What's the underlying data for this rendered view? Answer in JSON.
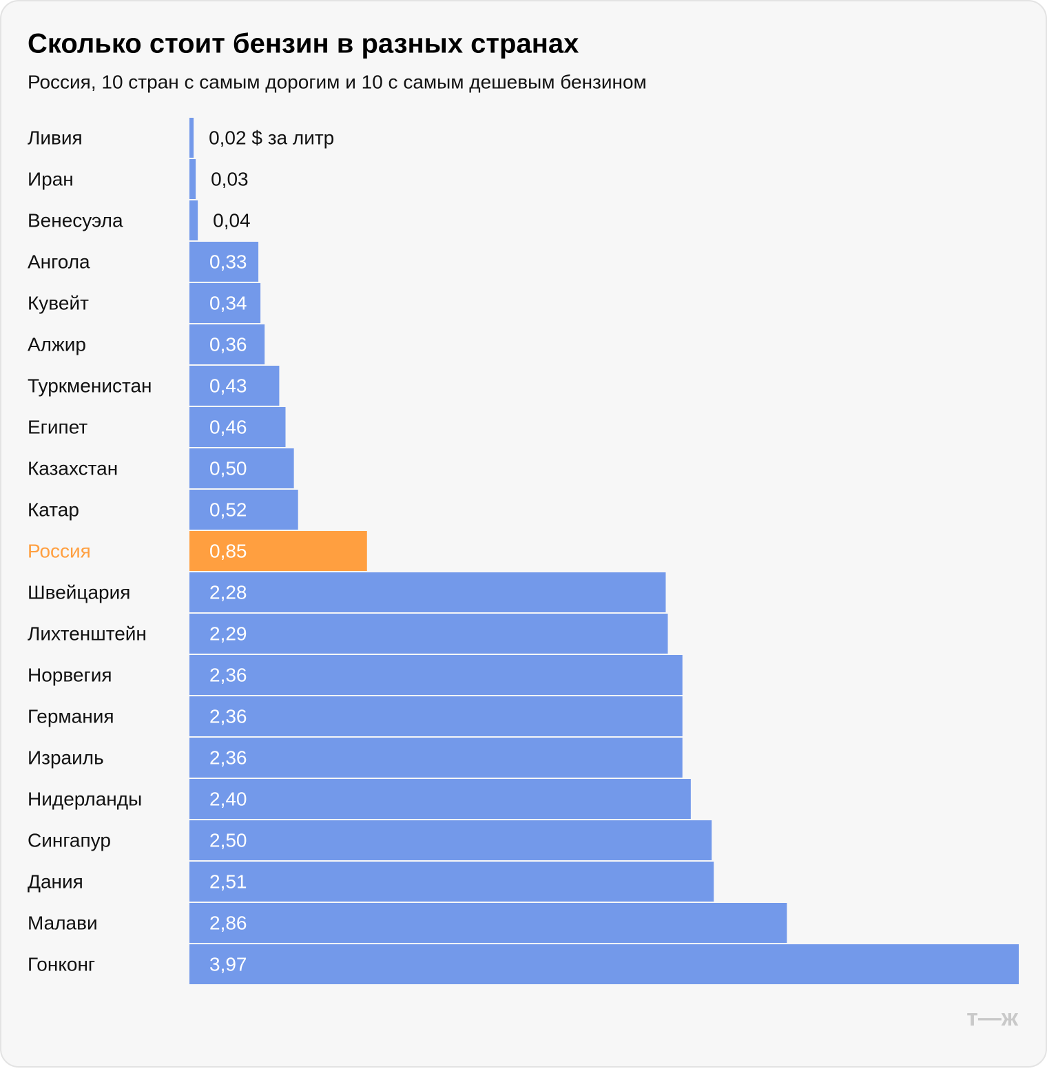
{
  "chart_data": {
    "type": "bar",
    "orientation": "horizontal",
    "title": "Сколько стоит бензин в разных странах",
    "subtitle": "Россия, 10 стран с самым дорогим и 10 с самым дешевым бензином",
    "categories": [
      "Ливия",
      "Иран",
      "Венесуэла",
      "Ангола",
      "Кувейт",
      "Алжир",
      "Туркменистан",
      "Египет",
      "Казахстан",
      "Катар",
      "Россия",
      "Швейцария",
      "Лихтенштейн",
      "Норвегия",
      "Германия",
      "Израиль",
      "Нидерланды",
      "Сингапур",
      "Дания",
      "Малави",
      "Гонконг"
    ],
    "values": [
      0.02,
      0.03,
      0.04,
      0.33,
      0.34,
      0.36,
      0.43,
      0.46,
      0.5,
      0.52,
      0.85,
      2.28,
      2.29,
      2.36,
      2.36,
      2.36,
      2.4,
      2.5,
      2.51,
      2.86,
      3.97
    ],
    "value_labels": [
      "0,02 $ за литр",
      "0,03",
      "0,04",
      "0,33",
      "0,34",
      "0,36",
      "0,43",
      "0,46",
      "0,50",
      "0,52",
      "0,85",
      "2,28",
      "2,29",
      "2,36",
      "2,36",
      "2,36",
      "2,40",
      "2,50",
      "2,51",
      "2,86",
      "3,97"
    ],
    "colors": [
      "#7399ea",
      "#7399ea",
      "#7399ea",
      "#7399ea",
      "#7399ea",
      "#7399ea",
      "#7399ea",
      "#7399ea",
      "#7399ea",
      "#7399ea",
      "#ff9f40",
      "#7399ea",
      "#7399ea",
      "#7399ea",
      "#7399ea",
      "#7399ea",
      "#7399ea",
      "#7399ea",
      "#7399ea",
      "#7399ea",
      "#7399ea"
    ],
    "xlim": [
      0,
      3.97
    ],
    "logo": "т—ж"
  }
}
